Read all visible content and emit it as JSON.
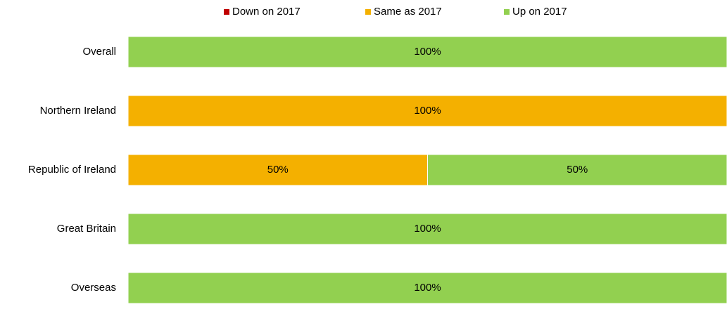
{
  "chart_data": {
    "type": "stacked-bar-horizontal",
    "categories": [
      "Overall",
      "Northern Ireland",
      "Republic of Ireland",
      "Great Britain",
      "Overseas"
    ],
    "series": [
      {
        "name": "Down on 2017",
        "color": "#c00000",
        "values": [
          0,
          0,
          0,
          0,
          0
        ]
      },
      {
        "name": "Same as 2017",
        "color": "#f4b000",
        "values": [
          0,
          100,
          50,
          0,
          0
        ],
        "value_labels": [
          null,
          "100%",
          "50%",
          null,
          null
        ]
      },
      {
        "name": "Up on 2017",
        "color": "#92d050",
        "values": [
          100,
          0,
          50,
          100,
          100
        ],
        "value_labels": [
          "100%",
          null,
          "50%",
          "100%",
          "100%"
        ]
      }
    ],
    "xlim": [
      0,
      100
    ],
    "legend": "top"
  }
}
